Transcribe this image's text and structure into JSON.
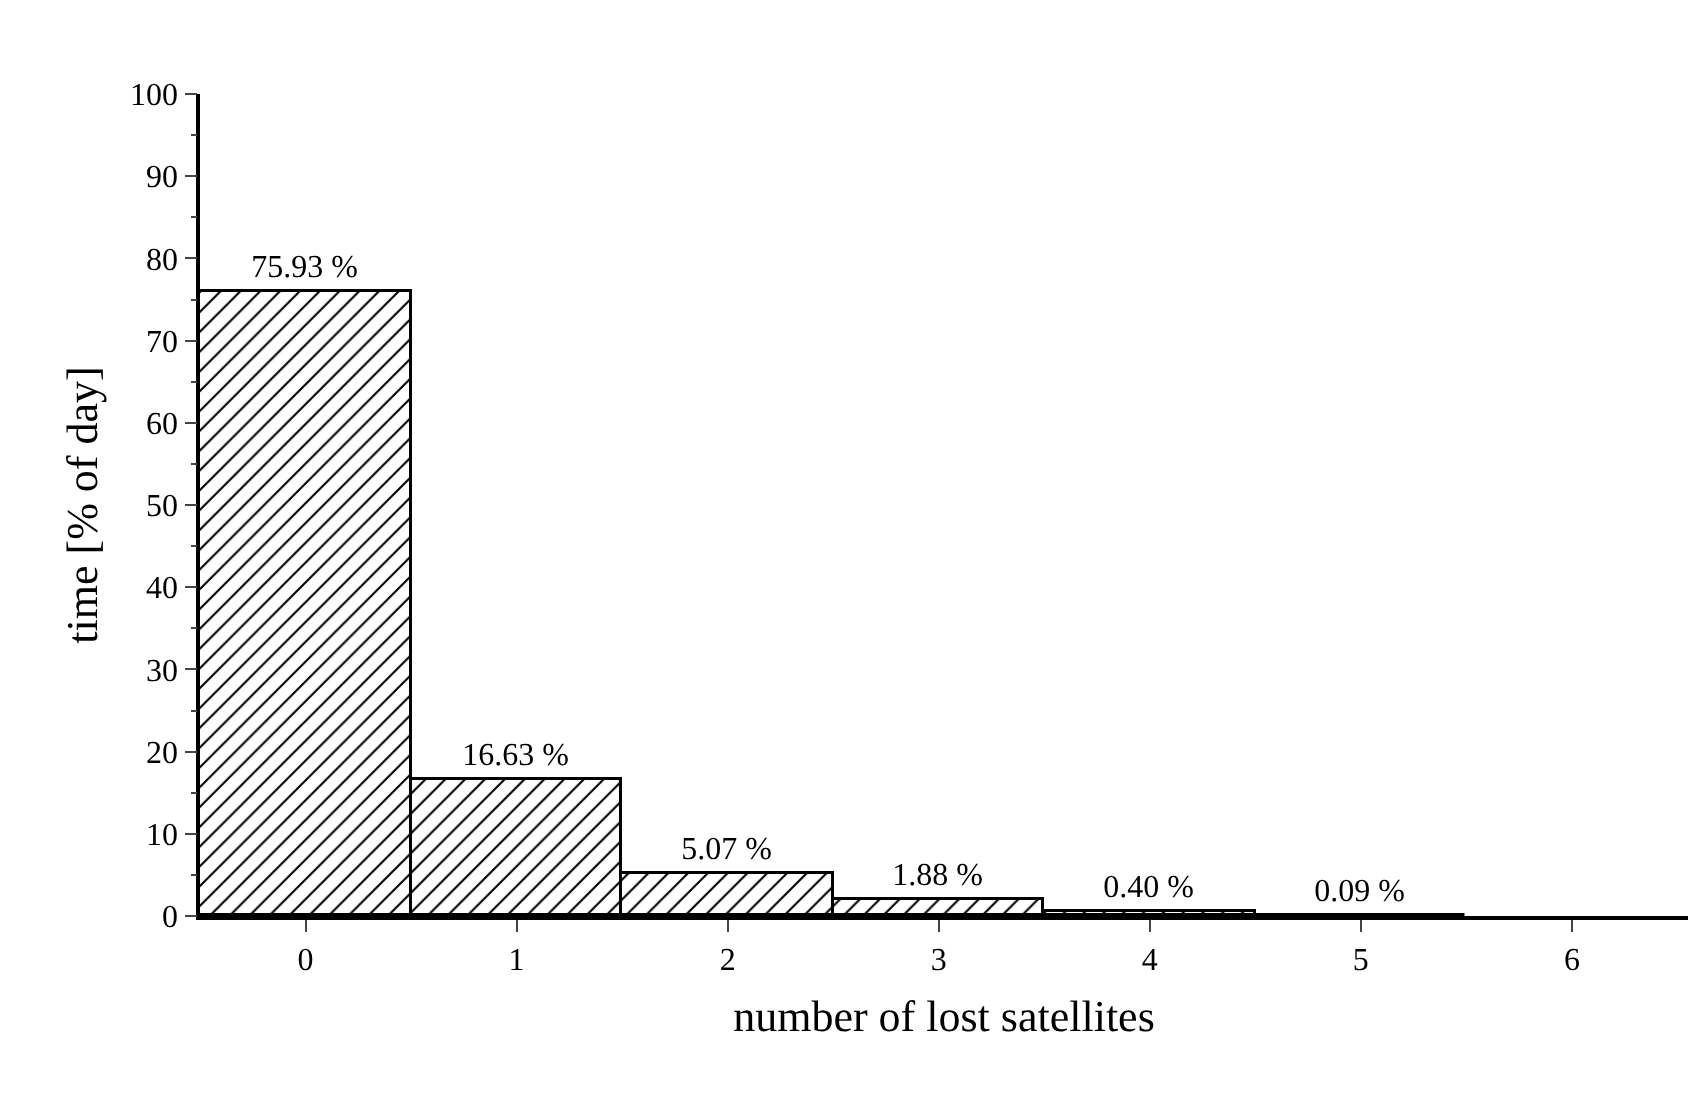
{
  "chart_data": {
    "type": "bar",
    "xlabel": "number of lost satellites",
    "ylabel": "time [% of day]",
    "categories": [
      "0",
      "1",
      "2",
      "3",
      "4",
      "5",
      "6"
    ],
    "values": [
      75.93,
      16.63,
      5.07,
      1.88,
      0.4,
      0.09,
      null
    ],
    "value_labels": [
      "75.93 %",
      "16.63 %",
      "5.07 %",
      "1.88 %",
      "0.40 %",
      "0.09 %",
      null
    ],
    "color": "#000000",
    "ylim": [
      0,
      100
    ],
    "yticks": [
      0,
      10,
      20,
      30,
      40,
      50,
      60,
      70,
      80,
      90,
      100
    ],
    "grid": false,
    "legend": false
  }
}
